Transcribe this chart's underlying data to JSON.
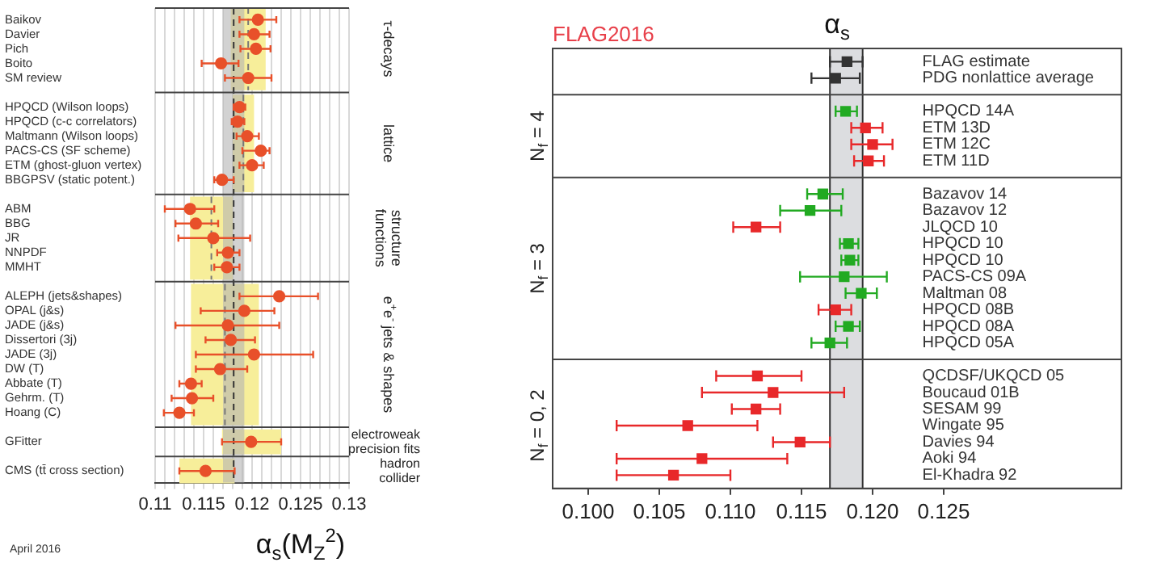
{
  "chart_data": [
    {
      "type": "scatter",
      "orientation": "horizontal",
      "xlabel": "α$_{s}$(M$_{Z}$$^{2}$)",
      "annotations": [
        "April 2016"
      ],
      "marker": "circle",
      "grid": "x",
      "categories": [
        "Baikov",
        "Davier",
        "Pich",
        "Boito",
        "SM review",
        "HPQCD (Wilson loops)",
        "HPQCD (c-c correlators)",
        "Maltmann (Wilson loops)",
        "PACS-CS (SF scheme)",
        "ETM (ghost-gluon vertex)",
        "BBGPSV (static potent.)",
        "ABM",
        "BBG",
        "JR",
        "NNPDF",
        "MMHT",
        "ALEPH (jets&shapes)",
        "OPAL (j&s)",
        "JADE (j&s)",
        "Dissertori (3j)",
        "JADE (3j)",
        "DW (T)",
        "Abbate (T)",
        "Gehrm. (T)",
        "Hoang (C)",
        "GFitter",
        "CMS (tt̄ cross section)"
      ],
      "series": [
        {
          "name": "τ-decays",
          "color": "#e8502a",
          "values": [
            0.1206,
            0.1202,
            0.1204,
            0.1168,
            0.1196,
            null,
            null,
            null,
            null,
            null,
            null,
            null,
            null,
            null,
            null,
            null,
            null,
            null,
            null,
            null,
            null,
            null,
            null,
            null,
            null,
            null,
            null
          ],
          "errors": [
            [
              0.1187,
              0.1225
            ],
            [
              0.1187,
              0.1218
            ],
            [
              0.1188,
              0.1219
            ],
            [
              0.1148,
              0.1186
            ],
            [
              0.1172,
              0.122
            ],
            null,
            null,
            null,
            null,
            null,
            null,
            null,
            null,
            null,
            null,
            null,
            null,
            null,
            null,
            null,
            null,
            null,
            null,
            null,
            null,
            null,
            null
          ]
        },
        {
          "name": "lattice",
          "color": "#e8502a",
          "values": [
            null,
            null,
            null,
            null,
            null,
            0.1187,
            0.1185,
            0.1195,
            0.1209,
            0.12,
            0.1169,
            null,
            null,
            null,
            null,
            null,
            null,
            null,
            null,
            null,
            null,
            null,
            null,
            null,
            null,
            null,
            null
          ],
          "errors": [
            null,
            null,
            null,
            null,
            null,
            [
              0.1181,
              0.1193
            ],
            [
              0.1179,
              0.1192
            ],
            [
              0.1184,
              0.1207
            ],
            [
              0.119,
              0.1218
            ],
            [
              0.1187,
              0.1212
            ],
            [
              0.1161,
              0.1181
            ],
            null,
            null,
            null,
            null,
            null,
            null,
            null,
            null,
            null,
            null,
            null,
            null,
            null,
            null,
            null,
            null
          ]
        },
        {
          "name": "structure functions",
          "color": "#e8502a",
          "values": [
            null,
            null,
            null,
            null,
            null,
            null,
            null,
            null,
            null,
            null,
            null,
            0.1136,
            0.1142,
            0.116,
            0.1175,
            0.1174,
            null,
            null,
            null,
            null,
            null,
            null,
            null,
            null,
            null,
            null,
            null
          ],
          "errors": [
            null,
            null,
            null,
            null,
            null,
            null,
            null,
            null,
            null,
            null,
            null,
            [
              0.111,
              0.1161
            ],
            [
              0.1121,
              0.1165
            ],
            [
              0.1124,
              0.1198
            ],
            [
              0.1164,
              0.1187
            ],
            [
              0.1161,
              0.1187
            ],
            null,
            null,
            null,
            null,
            null,
            null,
            null,
            null,
            null,
            null,
            null
          ]
        },
        {
          "name": "e$^{+}$e$^{-}$ jets & shapes",
          "color": "#e8502a",
          "values": [
            null,
            null,
            null,
            null,
            null,
            null,
            null,
            null,
            null,
            null,
            null,
            null,
            null,
            null,
            null,
            null,
            0.1228,
            0.1192,
            0.1175,
            0.1178,
            0.1202,
            0.1167,
            0.1137,
            0.1138,
            0.1125,
            null,
            null
          ],
          "errors": [
            null,
            null,
            null,
            null,
            null,
            null,
            null,
            null,
            null,
            null,
            null,
            null,
            null,
            null,
            null,
            null,
            [
              0.1187,
              0.1268
            ],
            [
              0.1147,
              0.1223
            ],
            [
              0.1121,
              0.1228
            ],
            [
              0.1152,
              0.1203
            ],
            [
              0.1142,
              0.1263
            ],
            [
              0.1142,
              0.1195
            ],
            [
              0.1125,
              0.1148
            ],
            [
              0.1117,
              0.116
            ],
            [
              0.1109,
              0.114
            ],
            null,
            null
          ]
        },
        {
          "name": "electroweak precision fits",
          "color": "#e8502a",
          "values": [
            null,
            null,
            null,
            null,
            null,
            null,
            null,
            null,
            null,
            null,
            null,
            null,
            null,
            null,
            null,
            null,
            null,
            null,
            null,
            null,
            null,
            null,
            null,
            null,
            null,
            0.1199,
            null
          ],
          "errors": [
            null,
            null,
            null,
            null,
            null,
            null,
            null,
            null,
            null,
            null,
            null,
            null,
            null,
            null,
            null,
            null,
            null,
            null,
            null,
            null,
            null,
            null,
            null,
            null,
            null,
            [
              0.1169,
              0.123
            ],
            null
          ]
        },
        {
          "name": "hadron collider",
          "color": "#e8502a",
          "values": [
            null,
            null,
            null,
            null,
            null,
            null,
            null,
            null,
            null,
            null,
            null,
            null,
            null,
            null,
            null,
            null,
            null,
            null,
            null,
            null,
            null,
            null,
            null,
            null,
            null,
            null,
            0.1152
          ],
          "errors": [
            null,
            null,
            null,
            null,
            null,
            null,
            null,
            null,
            null,
            null,
            null,
            null,
            null,
            null,
            null,
            null,
            null,
            null,
            null,
            null,
            null,
            null,
            null,
            null,
            null,
            null,
            [
              0.1125,
              0.1182
            ]
          ]
        }
      ],
      "bands": [
        {
          "axis": "x",
          "from": 0.117,
          "to": 0.1192,
          "color": "#b4b4b4"
        },
        {
          "axis": "x",
          "from": 0.1178,
          "to": 0.1214,
          "color": "#f7ee9a"
        },
        {
          "axis": "x",
          "from": 0.118,
          "to": 0.1202,
          "color": "#f7ee9a"
        },
        {
          "axis": "x",
          "from": 0.1136,
          "to": 0.118,
          "color": "#f7ee9a"
        },
        {
          "axis": "x",
          "from": 0.1137,
          "to": 0.1207,
          "color": "#f7ee9a"
        },
        {
          "axis": "x",
          "from": 0.1169,
          "to": 0.123,
          "color": "#f7ee9a"
        },
        {
          "axis": "x",
          "from": 0.1125,
          "to": 0.1182,
          "color": "#f7ee9a"
        }
      ],
      "ref_lines": [
        {
          "axis": "x",
          "value": 0.1181,
          "line_style": "dashed",
          "color": "#333333"
        },
        {
          "axis": "x",
          "value": 0.1196,
          "line_style": "dashed",
          "color": "#777777"
        },
        {
          "axis": "x",
          "value": 0.1191,
          "line_style": "dashed",
          "color": "#777777"
        },
        {
          "axis": "x",
          "value": 0.1158,
          "line_style": "dashed",
          "color": "#777777"
        },
        {
          "axis": "x",
          "value": 0.1172,
          "line_style": "dashed",
          "color": "#777777"
        }
      ],
      "xlim": [
        0.11,
        0.13
      ],
      "xticks": [
        0.11,
        {
          "value": 0.111,
          "label": null
        },
        {
          "value": 0.112,
          "label": null
        },
        {
          "value": 0.113,
          "label": null
        },
        {
          "value": 0.114,
          "label": null
        },
        0.115,
        {
          "value": 0.116,
          "label": null
        },
        {
          "value": 0.117,
          "label": null
        },
        {
          "value": 0.118,
          "label": null
        },
        {
          "value": 0.119,
          "label": null
        },
        0.12,
        {
          "value": 0.121,
          "label": null
        },
        {
          "value": 0.122,
          "label": null
        },
        {
          "value": 0.123,
          "label": null
        },
        {
          "value": 0.124,
          "label": null
        },
        0.125,
        {
          "value": 0.126,
          "label": null
        },
        {
          "value": 0.127,
          "label": null
        },
        {
          "value": 0.128,
          "label": null
        },
        {
          "value": 0.129,
          "label": null
        },
        0.13
      ]
    },
    {
      "type": "scatter",
      "orientation": "horizontal",
      "title": "α$_{s}$",
      "annotations": [
        "FLAG2016",
        "N$_{f}$ = 4",
        "N$_{f}$ = 3",
        "N$_{f}$ = 0, 2"
      ],
      "marker": "square",
      "categories": [
        "FLAG estimate",
        "PDG nonlattice average",
        "HPQCD 14A",
        "ETM 13D",
        "ETM 12C",
        "ETM 11D",
        "Bazavov 14",
        "Bazavov 12",
        "JLQCD 10",
        "HPQCD 10",
        "HPQCD 10",
        "PACS-CS 09A",
        "Maltman 08",
        "HPQCD 08B",
        "HPQCD 08A",
        "HPQCD 05A",
        "QCDSF/UKQCD 05",
        "Boucaud 01B",
        "SESAM 99",
        "Wingate 95",
        "Davies 94",
        "Aoki 94",
        "El-Khadra 92"
      ],
      "series": [
        {
          "values": [
            0.1182,
            0.1174,
            null,
            null,
            null,
            null,
            null,
            null,
            null,
            null,
            null,
            null,
            null,
            null,
            null,
            null,
            null,
            null,
            null,
            null,
            null,
            null,
            null
          ],
          "colors": [
            "#333333",
            "#333333",
            null,
            null,
            null,
            null,
            null,
            null,
            null,
            null,
            null,
            null,
            null,
            null,
            null,
            null,
            null,
            null,
            null,
            null,
            null,
            null,
            null
          ],
          "errors": [
            [
              0.117,
              0.1193
            ],
            [
              0.1157,
              0.1191
            ],
            null,
            null,
            null,
            null,
            null,
            null,
            null,
            null,
            null,
            null,
            null,
            null,
            null,
            null,
            null,
            null,
            null,
            null,
            null,
            null,
            null
          ]
        },
        {
          "values": [
            null,
            null,
            0.1181,
            0.1195,
            0.12,
            0.1197,
            null,
            null,
            null,
            null,
            null,
            null,
            null,
            null,
            null,
            null,
            null,
            null,
            null,
            null,
            null,
            null,
            null
          ],
          "colors": [
            null,
            null,
            "#22aa22",
            "#e8282a",
            "#e8282a",
            "#e8282a",
            null,
            null,
            null,
            null,
            null,
            null,
            null,
            null,
            null,
            null,
            null,
            null,
            null,
            null,
            null,
            null,
            null
          ],
          "errors": [
            null,
            null,
            [
              0.1174,
              0.1189
            ],
            [
              0.1185,
              0.1207
            ],
            [
              0.1185,
              0.1214
            ],
            [
              0.1187,
              0.1208
            ],
            null,
            null,
            null,
            null,
            null,
            null,
            null,
            null,
            null,
            null,
            null,
            null,
            null,
            null,
            null,
            null,
            null
          ]
        },
        {
          "values": [
            null,
            null,
            null,
            null,
            null,
            null,
            0.1165,
            0.1156,
            0.1118,
            0.1183,
            0.1184,
            0.118,
            0.1192,
            0.1174,
            0.1183,
            0.117,
            null,
            null,
            null,
            null,
            null,
            null,
            null
          ],
          "colors": [
            null,
            null,
            null,
            null,
            null,
            null,
            "#22aa22",
            "#22aa22",
            "#e8282a",
            "#22aa22",
            "#22aa22",
            "#22aa22",
            "#22aa22",
            "#e8282a",
            "#22aa22",
            "#22aa22",
            null,
            null,
            null,
            null,
            null,
            null,
            null
          ],
          "errors": [
            null,
            null,
            null,
            null,
            null,
            null,
            [
              0.1154,
              0.1179
            ],
            [
              0.1135,
              0.1178
            ],
            [
              0.1102,
              0.1135
            ],
            [
              0.1177,
              0.119
            ],
            [
              0.1178,
              0.119
            ],
            [
              0.1149,
              0.121
            ],
            [
              0.1181,
              0.1203
            ],
            [
              0.1162,
              0.1185
            ],
            [
              0.1174,
              0.1191
            ],
            [
              0.1157,
              0.1182
            ],
            null,
            null,
            null,
            null,
            null,
            null,
            null
          ]
        },
        {
          "values": [
            null,
            null,
            null,
            null,
            null,
            null,
            null,
            null,
            null,
            null,
            null,
            null,
            null,
            null,
            null,
            null,
            0.1119,
            0.113,
            0.1118,
            0.107,
            0.1149,
            0.108,
            0.106
          ],
          "colors": [
            null,
            null,
            null,
            null,
            null,
            null,
            null,
            null,
            null,
            null,
            null,
            null,
            null,
            null,
            null,
            null,
            "#e8282a",
            "#e8282a",
            "#e8282a",
            "#e8282a",
            "#e8282a",
            "#e8282a",
            "#e8282a"
          ],
          "errors": [
            null,
            null,
            null,
            null,
            null,
            null,
            null,
            null,
            null,
            null,
            null,
            null,
            null,
            null,
            null,
            null,
            [
              0.109,
              0.115
            ],
            [
              0.108,
              0.118
            ],
            [
              0.1101,
              0.1135
            ],
            [
              0.102,
              0.1119
            ],
            [
              0.113,
              0.117
            ],
            [
              0.102,
              0.114
            ],
            [
              0.102,
              0.11
            ]
          ]
        }
      ],
      "bands": [
        {
          "axis": "x",
          "from": 0.117,
          "to": 0.1193,
          "color": "#dcdde0"
        }
      ],
      "ref_lines": [
        {
          "axis": "x",
          "value": 0.117,
          "line_style": "solid",
          "color": "#333333"
        },
        {
          "axis": "x",
          "value": 0.1193,
          "line_style": "solid",
          "color": "#333333"
        }
      ],
      "xlim": [
        0.0975,
        0.1375
      ],
      "xticks": [
        {
          "value": 0.1,
          "label": "0.100"
        },
        0.105,
        {
          "value": 0.11,
          "label": "0.110"
        },
        0.115,
        {
          "value": 0.12,
          "label": "0.120"
        },
        0.125
      ]
    }
  ]
}
